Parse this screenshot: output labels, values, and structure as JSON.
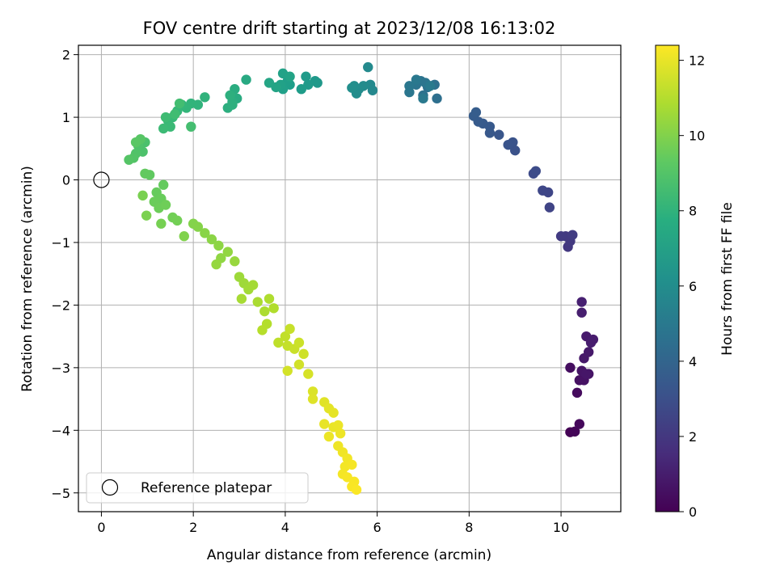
{
  "chart_data": {
    "type": "scatter",
    "title": "FOV centre drift starting at 2023/12/08 16:13:02",
    "xlabel": "Angular distance from reference (arcmin)",
    "ylabel": "Rotation from reference (arcmin)",
    "xlim": [
      -0.5,
      11.3
    ],
    "ylim": [
      -5.3,
      2.15
    ],
    "xticks": [
      0,
      2,
      4,
      6,
      8,
      10
    ],
    "yticks": [
      -5,
      -4,
      -3,
      -2,
      -1,
      0,
      1,
      2
    ],
    "grid": true,
    "colorscale": "viridis",
    "colorbar": {
      "label": "Hours from first FF file",
      "range": [
        0,
        12.4
      ],
      "ticks": [
        0,
        2,
        4,
        6,
        8,
        10,
        12
      ]
    },
    "legend": {
      "placement": "lower-left",
      "label": "Reference platepar"
    },
    "reference_point": {
      "x": 0,
      "y": 0,
      "marker": "open-circle"
    },
    "points": [
      [
        10.2,
        -4.03,
        0.05
      ],
      [
        10.3,
        -4.02,
        0.15
      ],
      [
        10.4,
        -3.9,
        0.25
      ],
      [
        10.35,
        -3.4,
        0.35
      ],
      [
        10.2,
        -3.0,
        0.45
      ],
      [
        10.4,
        -3.2,
        0.55
      ],
      [
        10.5,
        -3.2,
        0.6
      ],
      [
        10.6,
        -3.1,
        0.65
      ],
      [
        10.45,
        -3.05,
        0.7
      ],
      [
        10.55,
        -3.1,
        0.75
      ],
      [
        10.5,
        -2.85,
        0.8
      ],
      [
        10.6,
        -2.75,
        0.85
      ],
      [
        10.55,
        -2.5,
        0.9
      ],
      [
        10.7,
        -2.55,
        0.95
      ],
      [
        10.65,
        -2.6,
        1.0
      ],
      [
        10.45,
        -2.12,
        1.05
      ],
      [
        10.45,
        -1.95,
        1.1
      ],
      [
        10.15,
        -1.07,
        2.0
      ],
      [
        10.2,
        -0.98,
        2.05
      ],
      [
        10.1,
        -0.9,
        2.1
      ],
      [
        10.0,
        -0.9,
        2.15
      ],
      [
        10.25,
        -0.88,
        2.2
      ],
      [
        9.75,
        -0.44,
        2.5
      ],
      [
        9.72,
        -0.2,
        2.6
      ],
      [
        9.6,
        -0.17,
        2.65
      ],
      [
        9.4,
        0.1,
        2.8
      ],
      [
        9.45,
        0.14,
        2.85
      ],
      [
        9.0,
        0.47,
        3.1
      ],
      [
        8.95,
        0.6,
        3.15
      ],
      [
        8.85,
        0.56,
        3.2
      ],
      [
        8.65,
        0.72,
        3.3
      ],
      [
        8.45,
        0.75,
        3.4
      ],
      [
        8.45,
        0.85,
        3.45
      ],
      [
        8.3,
        0.9,
        3.5
      ],
      [
        8.2,
        0.93,
        3.55
      ],
      [
        8.1,
        1.02,
        3.6
      ],
      [
        8.15,
        1.08,
        3.65
      ],
      [
        7.3,
        1.3,
        4.5
      ],
      [
        7.25,
        1.52,
        4.55
      ],
      [
        7.1,
        1.48,
        4.6
      ],
      [
        7.0,
        1.35,
        4.65
      ],
      [
        6.95,
        1.58,
        4.7
      ],
      [
        6.85,
        1.52,
        4.75
      ],
      [
        7.05,
        1.55,
        4.8
      ],
      [
        6.7,
        1.4,
        4.9
      ],
      [
        6.7,
        1.5,
        4.95
      ],
      [
        6.85,
        1.6,
        5.0
      ],
      [
        7.0,
        1.3,
        5.05
      ],
      [
        7.15,
        1.5,
        5.1
      ],
      [
        5.9,
        1.43,
        5.8
      ],
      [
        5.85,
        1.52,
        5.85
      ],
      [
        5.8,
        1.8,
        5.9
      ],
      [
        5.7,
        1.5,
        5.95
      ],
      [
        5.6,
        1.45,
        6.0
      ],
      [
        5.55,
        1.38,
        6.05
      ],
      [
        5.5,
        1.5,
        6.1
      ],
      [
        5.45,
        1.47,
        6.15
      ],
      [
        4.7,
        1.55,
        6.6
      ],
      [
        4.65,
        1.58,
        6.65
      ],
      [
        4.5,
        1.52,
        6.7
      ],
      [
        4.45,
        1.65,
        6.75
      ],
      [
        4.35,
        1.45,
        6.8
      ],
      [
        4.1,
        1.52,
        6.9
      ],
      [
        4.05,
        1.58,
        6.95
      ],
      [
        3.95,
        1.45,
        7.0
      ],
      [
        3.9,
        1.52,
        7.05
      ],
      [
        3.95,
        1.7,
        7.1
      ],
      [
        4.1,
        1.65,
        7.15
      ],
      [
        3.8,
        1.48,
        7.2
      ],
      [
        3.65,
        1.55,
        7.25
      ],
      [
        3.15,
        1.6,
        7.5
      ],
      [
        2.95,
        1.3,
        7.6
      ],
      [
        2.9,
        1.45,
        7.65
      ],
      [
        2.85,
        1.25,
        7.7
      ],
      [
        2.75,
        1.15,
        7.75
      ],
      [
        2.8,
        1.35,
        7.8
      ],
      [
        2.85,
        1.2,
        7.85
      ],
      [
        2.25,
        1.32,
        8.0
      ],
      [
        2.1,
        1.2,
        8.05
      ],
      [
        1.95,
        1.22,
        8.1
      ],
      [
        1.85,
        1.15,
        8.15
      ],
      [
        1.75,
        1.2,
        8.2
      ],
      [
        1.65,
        1.1,
        8.25
      ],
      [
        1.55,
        1.0,
        8.3
      ],
      [
        1.45,
        0.95,
        8.35
      ],
      [
        1.5,
        0.85,
        8.4
      ],
      [
        1.35,
        0.82,
        8.45
      ],
      [
        1.4,
        1.0,
        8.5
      ],
      [
        1.6,
        1.05,
        8.55
      ],
      [
        1.7,
        1.22,
        8.6
      ],
      [
        1.95,
        0.85,
        8.65
      ],
      [
        0.95,
        0.6,
        8.8
      ],
      [
        0.9,
        0.45,
        8.85
      ],
      [
        0.8,
        0.55,
        8.9
      ],
      [
        0.75,
        0.42,
        8.95
      ],
      [
        0.7,
        0.35,
        9.0
      ],
      [
        0.6,
        0.32,
        9.05
      ],
      [
        0.85,
        0.65,
        9.1
      ],
      [
        0.75,
        0.6,
        9.15
      ],
      [
        1.05,
        0.08,
        9.3
      ],
      [
        0.95,
        0.1,
        9.35
      ],
      [
        1.35,
        -0.08,
        9.4
      ],
      [
        1.2,
        -0.2,
        9.45
      ],
      [
        1.3,
        -0.3,
        9.5
      ],
      [
        1.15,
        -0.35,
        9.55
      ],
      [
        1.25,
        -0.45,
        9.6
      ],
      [
        1.4,
        -0.4,
        9.65
      ],
      [
        1.55,
        -0.6,
        9.7
      ],
      [
        1.65,
        -0.65,
        9.75
      ],
      [
        1.3,
        -0.7,
        9.8
      ],
      [
        0.9,
        -0.25,
        9.85
      ],
      [
        0.98,
        -0.57,
        9.9
      ],
      [
        1.8,
        -0.9,
        10.0
      ],
      [
        2.0,
        -0.7,
        10.05
      ],
      [
        2.1,
        -0.75,
        10.1
      ],
      [
        2.25,
        -0.85,
        10.15
      ],
      [
        2.4,
        -0.95,
        10.2
      ],
      [
        2.55,
        -1.05,
        10.25
      ],
      [
        2.6,
        -1.25,
        10.3
      ],
      [
        2.75,
        -1.15,
        10.35
      ],
      [
        2.5,
        -1.35,
        10.4
      ],
      [
        2.9,
        -1.3,
        10.45
      ],
      [
        3.0,
        -1.55,
        10.55
      ],
      [
        3.1,
        -1.65,
        10.6
      ],
      [
        3.2,
        -1.75,
        10.65
      ],
      [
        3.3,
        -1.68,
        10.7
      ],
      [
        3.05,
        -1.9,
        10.75
      ],
      [
        3.4,
        -1.95,
        10.8
      ],
      [
        3.55,
        -2.1,
        10.85
      ],
      [
        3.65,
        -1.9,
        10.9
      ],
      [
        3.75,
        -2.05,
        10.95
      ],
      [
        3.6,
        -2.3,
        11.0
      ],
      [
        3.5,
        -2.4,
        11.05
      ],
      [
        3.85,
        -2.6,
        11.2
      ],
      [
        4.0,
        -2.5,
        11.25
      ],
      [
        4.05,
        -2.65,
        11.3
      ],
      [
        4.1,
        -2.38,
        11.35
      ],
      [
        4.2,
        -2.7,
        11.4
      ],
      [
        4.3,
        -2.6,
        11.45
      ],
      [
        4.4,
        -2.78,
        11.5
      ],
      [
        4.3,
        -2.95,
        11.55
      ],
      [
        4.05,
        -3.05,
        11.6
      ],
      [
        4.5,
        -3.1,
        11.65
      ],
      [
        4.6,
        -3.38,
        11.75
      ],
      [
        4.6,
        -3.5,
        11.8
      ],
      [
        4.85,
        -3.55,
        11.85
      ],
      [
        4.95,
        -3.65,
        11.9
      ],
      [
        5.05,
        -3.72,
        11.95
      ],
      [
        4.85,
        -3.9,
        12.0
      ],
      [
        5.05,
        -3.95,
        12.02
      ],
      [
        5.15,
        -3.92,
        12.05
      ],
      [
        4.95,
        -4.1,
        12.08
      ],
      [
        5.2,
        -4.05,
        12.1
      ],
      [
        5.15,
        -4.25,
        12.12
      ],
      [
        5.25,
        -4.35,
        12.15
      ],
      [
        5.35,
        -4.45,
        12.18
      ],
      [
        5.3,
        -4.58,
        12.2
      ],
      [
        5.25,
        -4.7,
        12.22
      ],
      [
        5.45,
        -4.55,
        12.25
      ],
      [
        5.35,
        -4.75,
        12.28
      ],
      [
        5.5,
        -4.82,
        12.3
      ],
      [
        5.45,
        -4.9,
        12.32
      ],
      [
        5.55,
        -4.95,
        12.35
      ]
    ]
  }
}
